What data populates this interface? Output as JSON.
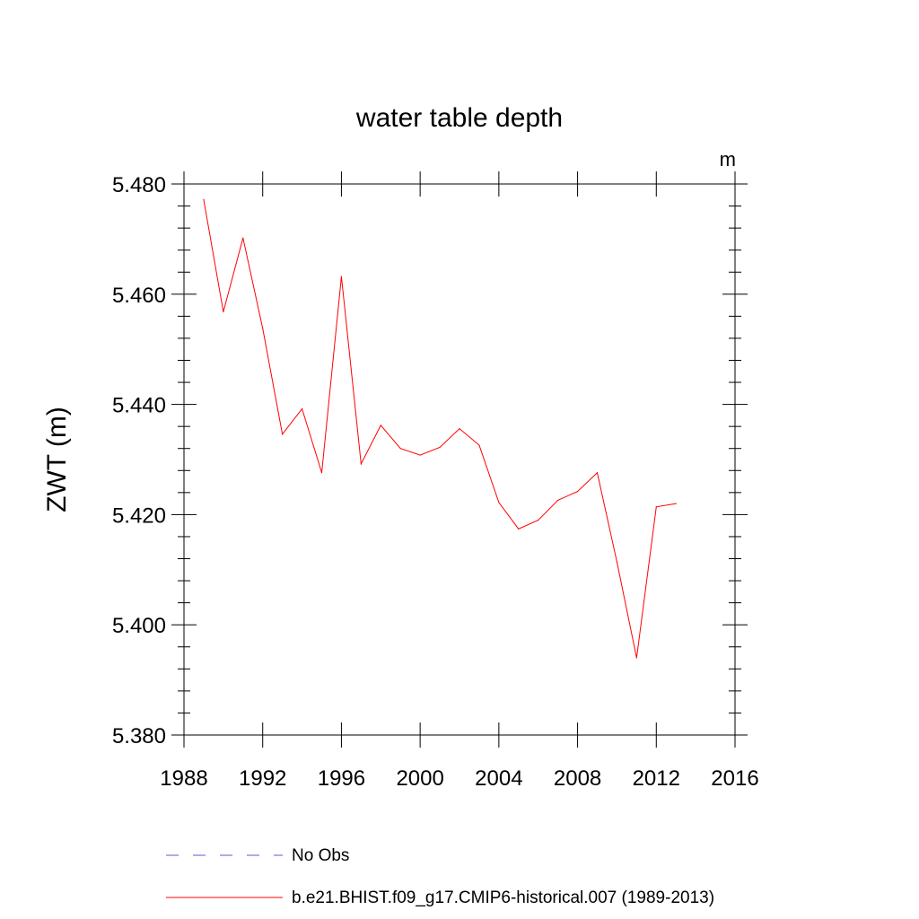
{
  "chart_data": {
    "type": "line",
    "title": "water table depth",
    "xlabel": "",
    "ylabel": "ZWT  (m)",
    "units": "m",
    "xlim": [
      1988,
      2016
    ],
    "ylim": [
      5.38,
      5.48
    ],
    "xticks": [
      1988,
      1992,
      1996,
      2000,
      2004,
      2008,
      2012,
      2016
    ],
    "xtick_labels": [
      "1988",
      "1992",
      "1996",
      "2000",
      "2004",
      "2008",
      "2012",
      "2016"
    ],
    "yticks": [
      5.38,
      5.4,
      5.42,
      5.44,
      5.46,
      5.48
    ],
    "ytick_labels": [
      "5.380",
      "5.400",
      "5.420",
      "5.440",
      "5.460",
      "5.480"
    ],
    "grid": false,
    "legend_position": "bottom",
    "series": [
      {
        "name": "b.e21.BHIST.f09_g17.CMIP6-historical.007 (1989-2013)",
        "color": "#ff0000",
        "style": "solid",
        "x": [
          1989,
          1990,
          1991,
          1992,
          1993,
          1994,
          1995,
          1996,
          1997,
          1998,
          1999,
          2000,
          2001,
          2002,
          2003,
          2004,
          2005,
          2006,
          2007,
          2008,
          2009,
          2010,
          2011,
          2012,
          2013
        ],
        "y": [
          5.4772,
          5.4568,
          5.4702,
          5.4538,
          5.4346,
          5.4392,
          5.4276,
          5.4632,
          5.4292,
          5.4362,
          5.432,
          5.4308,
          5.4322,
          5.4356,
          5.4326,
          5.4222,
          5.4174,
          5.419,
          5.4226,
          5.4242,
          5.4276,
          5.4114,
          5.394,
          5.4214,
          5.422
        ]
      }
    ],
    "legend": [
      {
        "label": "No Obs",
        "color": "#5b5bcc",
        "style": "dashed"
      },
      {
        "label": "b.e21.BHIST.f09_g17.CMIP6-historical.007 (1989-2013)",
        "color": "#ff0000",
        "style": "solid"
      }
    ]
  }
}
